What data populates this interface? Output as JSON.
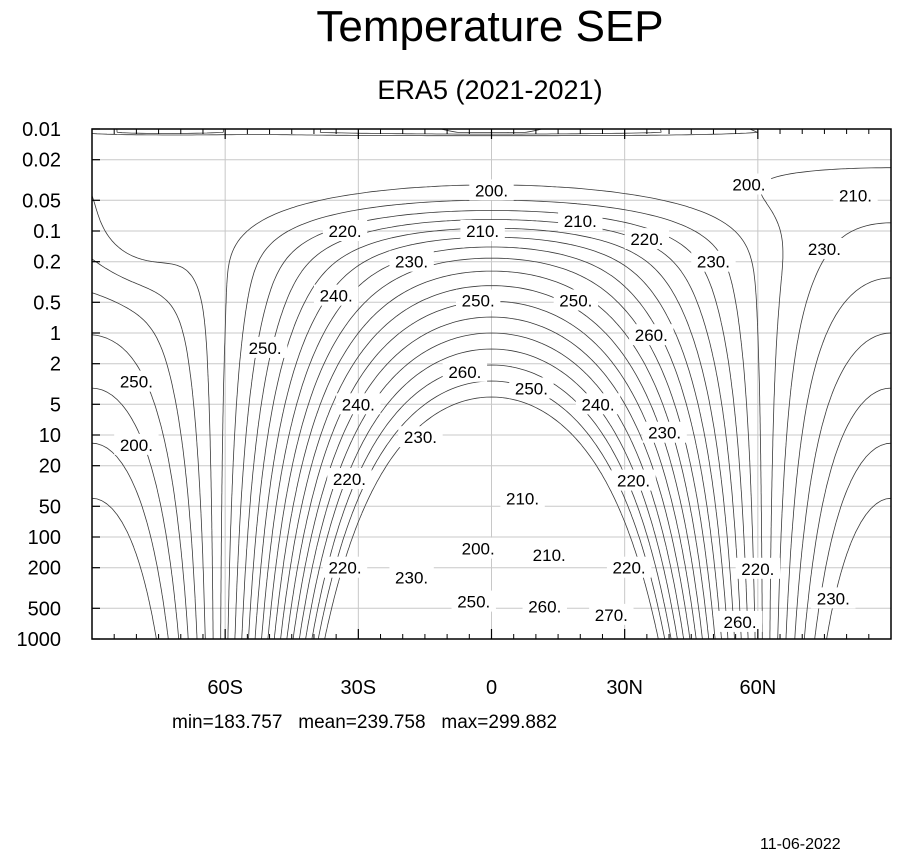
{
  "title": "Temperature SEP",
  "subtitle": "ERA5 (2021-2021)",
  "stats": {
    "min": "min=183.757",
    "mean": "mean=239.758",
    "max": "max=299.882"
  },
  "date": "11-06-2022",
  "chart_data": {
    "type": "contour",
    "variable": "Temperature",
    "x_axis": {
      "range": [
        -90,
        90
      ],
      "ticks": [
        {
          "value": -60,
          "label": "60S"
        },
        {
          "value": -30,
          "label": "30S"
        },
        {
          "value": 0,
          "label": "0"
        },
        {
          "value": 30,
          "label": "30N"
        },
        {
          "value": 60,
          "label": "60N"
        }
      ]
    },
    "y_axis": {
      "scale": "log",
      "reversed": true,
      "range": [
        1000,
        0.01
      ],
      "ticks": [
        {
          "value": 0.01,
          "label": "0.01"
        },
        {
          "value": 0.02,
          "label": "0.02"
        },
        {
          "value": 0.05,
          "label": "0.05"
        },
        {
          "value": 0.1,
          "label": "0.1"
        },
        {
          "value": 0.2,
          "label": "0.2"
        },
        {
          "value": 0.5,
          "label": "0.5"
        },
        {
          "value": 1,
          "label": "1"
        },
        {
          "value": 2,
          "label": "2"
        },
        {
          "value": 5,
          "label": "5"
        },
        {
          "value": 10,
          "label": "10"
        },
        {
          "value": 20,
          "label": "20"
        },
        {
          "value": 50,
          "label": "50"
        },
        {
          "value": 100,
          "label": "100"
        },
        {
          "value": 200,
          "label": "200"
        },
        {
          "value": 500,
          "label": "500"
        },
        {
          "value": 1000,
          "label": "1000"
        }
      ]
    },
    "grid": true,
    "contour_interval": 5,
    "contour_labels": [
      {
        "text": "200.",
        "lat": 0,
        "p": 0.04
      },
      {
        "text": "200.",
        "lat": 58,
        "p": 0.035
      },
      {
        "text": "210.",
        "lat": 82,
        "p": 0.045
      },
      {
        "text": "220.",
        "lat": -33,
        "p": 0.1
      },
      {
        "text": "210.",
        "lat": -2,
        "p": 0.1
      },
      {
        "text": "210.",
        "lat": 20,
        "p": 0.08
      },
      {
        "text": "220.",
        "lat": 35,
        "p": 0.12
      },
      {
        "text": "230.",
        "lat": 75,
        "p": 0.15
      },
      {
        "text": "230.",
        "lat": -18,
        "p": 0.2
      },
      {
        "text": "230.",
        "lat": 50,
        "p": 0.2
      },
      {
        "text": "240.",
        "lat": -35,
        "p": 0.43
      },
      {
        "text": "250.",
        "lat": -3,
        "p": 0.48
      },
      {
        "text": "250.",
        "lat": 19,
        "p": 0.48
      },
      {
        "text": "260.",
        "lat": 36,
        "p": 1.05
      },
      {
        "text": "250.",
        "lat": -51,
        "p": 1.4
      },
      {
        "text": "260.",
        "lat": -6,
        "p": 2.4
      },
      {
        "text": "250.",
        "lat": -80,
        "p": 3.0
      },
      {
        "text": "250.",
        "lat": 9,
        "p": 3.5
      },
      {
        "text": "240.",
        "lat": -30,
        "p": 5.0
      },
      {
        "text": "240.",
        "lat": 24,
        "p": 5.0
      },
      {
        "text": "230.",
        "lat": -16,
        "p": 10.5
      },
      {
        "text": "230.",
        "lat": 39,
        "p": 9.5
      },
      {
        "text": "200.",
        "lat": -80,
        "p": 12.5
      },
      {
        "text": "220.",
        "lat": -32,
        "p": 27
      },
      {
        "text": "220.",
        "lat": 32,
        "p": 28
      },
      {
        "text": "210.",
        "lat": 7,
        "p": 42
      },
      {
        "text": "200.",
        "lat": -3,
        "p": 130
      },
      {
        "text": "210.",
        "lat": 13,
        "p": 150
      },
      {
        "text": "220.",
        "lat": -33,
        "p": 200
      },
      {
        "text": "230.",
        "lat": -18,
        "p": 250
      },
      {
        "text": "220.",
        "lat": 31,
        "p": 200
      },
      {
        "text": "220.",
        "lat": 60,
        "p": 205
      },
      {
        "text": "250.",
        "lat": -4,
        "p": 430
      },
      {
        "text": "260.",
        "lat": 12,
        "p": 480
      },
      {
        "text": "270.",
        "lat": 27,
        "p": 580
      },
      {
        "text": "230.",
        "lat": 77,
        "p": 400
      },
      {
        "text": "260.",
        "lat": 56,
        "p": 680
      }
    ]
  }
}
